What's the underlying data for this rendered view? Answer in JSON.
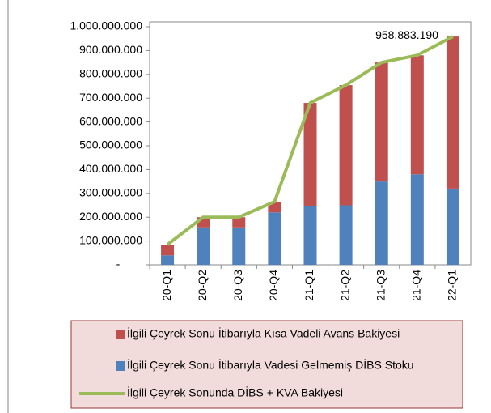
{
  "chart_data": {
    "type": "stacked_bar_line",
    "categories": [
      "20-Q1",
      "20-Q2",
      "20-Q3",
      "20-Q4",
      "21-Q1",
      "21-Q2",
      "21-Q3",
      "21-Q4",
      "22-Q1"
    ],
    "series": [
      {
        "name": "İlgili Çeyrek Sonu İtibarıyla Vadesi Gelmemiş DİBS Stoku",
        "color": "#4f81bd",
        "kind": "bar",
        "values": [
          40000000,
          157000000,
          157000000,
          220000000,
          248000000,
          250000000,
          350000000,
          380000000,
          320000000
        ]
      },
      {
        "name": "İlgili Çeyrek Sonu İtibarıyla Kısa Vadeli Avans Bakiyesi",
        "color": "#c0504d",
        "kind": "bar",
        "values": [
          45000000,
          43000000,
          43000000,
          45000000,
          432000000,
          505000000,
          500000000,
          500000000,
          638883190
        ]
      },
      {
        "name": "İlgili Çeyrek Sonunda DİBS  + KVA Bakiyesi",
        "color": "#9bbb59",
        "kind": "line",
        "values": [
          85000000,
          200000000,
          200000000,
          265000000,
          680000000,
          755000000,
          850000000,
          880000000,
          958883190
        ],
        "value_labels": [
          null,
          null,
          null,
          null,
          null,
          null,
          null,
          null,
          "958.883.190"
        ]
      }
    ],
    "ylim": [
      0,
      1000000000
    ],
    "yticks": [
      {
        "value": 0,
        "label": "-"
      },
      {
        "value": 100000000,
        "label": "100.000.000"
      },
      {
        "value": 200000000,
        "label": "200.000.000"
      },
      {
        "value": 300000000,
        "label": "300.000.000"
      },
      {
        "value": 400000000,
        "label": "400.000.000"
      },
      {
        "value": 500000000,
        "label": "500.000.000"
      },
      {
        "value": 600000000,
        "label": "600.000.000"
      },
      {
        "value": 700000000,
        "label": "700.000.000"
      },
      {
        "value": 800000000,
        "label": "800.000.000"
      },
      {
        "value": 900000000,
        "label": "900.000.000"
      },
      {
        "value": 1000000000,
        "label": "1.000.000.000"
      }
    ],
    "legend": "bottom"
  }
}
